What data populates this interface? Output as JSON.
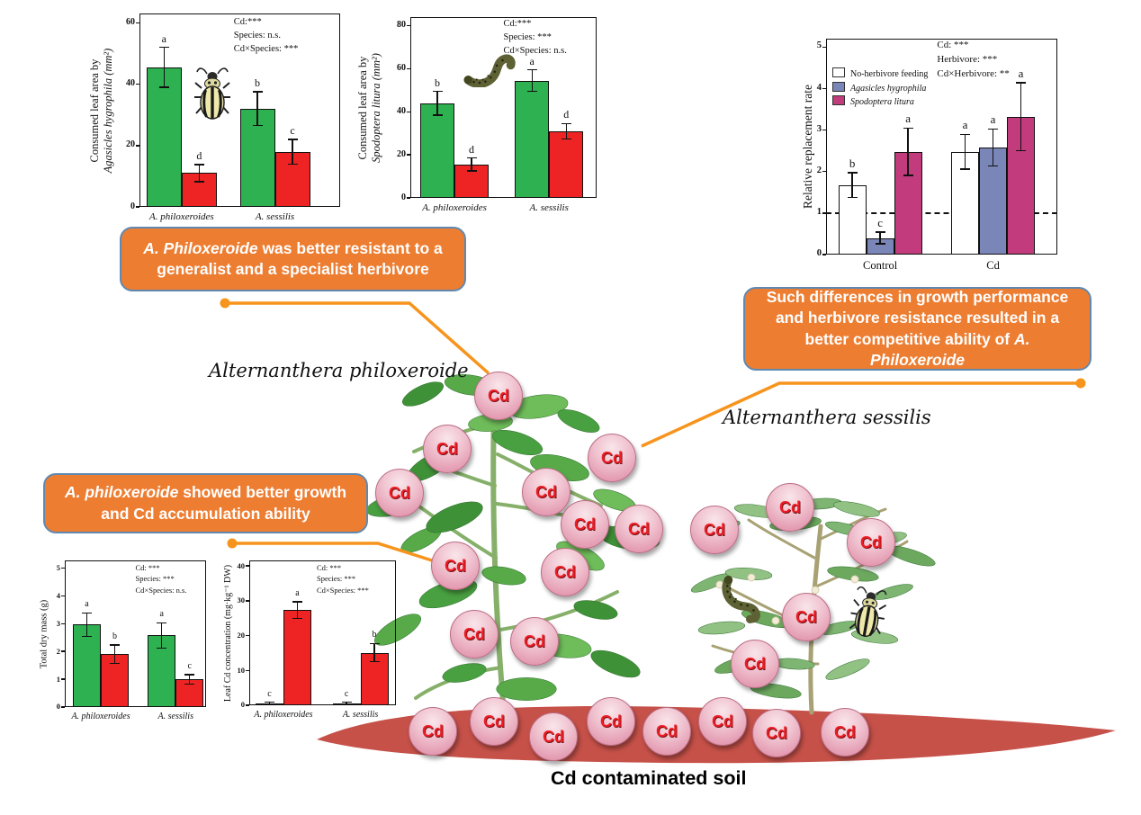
{
  "labels": {
    "left_plant": "Alternanthera philoxeroide",
    "right_plant": "Alternanthera sessilis",
    "soil": "Cd contaminated soil",
    "cd_ball": "Cd",
    "cd_ball_count": 24
  },
  "colors": {
    "callout_bg": "#ED7D31",
    "callout_border": "#6189b0",
    "connector_orange": "#f7941d",
    "bar_green": "#2eb150",
    "bar_red": "#ee2424",
    "bar_white": "#ffffff",
    "bar_blue": "#7b86b8",
    "bar_magenta": "#c23b7d",
    "soil_red": "#c65149",
    "ball_pink": "#f0c3d0"
  },
  "callouts": [
    {
      "pre": "",
      "italic": "A. Philoxeroide",
      "post": " was better resistant to a generalist and a specialist herbivore"
    },
    {
      "pre": "Such differences in growth performance and herbivore resistance  resulted in a better competitive ability of ",
      "italic": "A. Philoxeroide",
      "post": ""
    },
    {
      "pre": "",
      "italic": "A. philoxeroide",
      "post": " showed better growth and Cd accumulation ability"
    }
  ],
  "chart_data": [
    {
      "type": "bar",
      "ylabel_lines": [
        {
          "text": "Consumed leaf area by",
          "italic": false
        },
        {
          "text": "Agasicles hygrophila (mm²)",
          "italic": true
        }
      ],
      "categories": [
        {
          "text": "A. philoxeroides",
          "italic": true
        },
        {
          "text": "A. sessilis",
          "italic": true
        }
      ],
      "ylim": [
        0,
        63
      ],
      "yticks": [
        0,
        20,
        40,
        60
      ],
      "series": [
        {
          "color": "#2eb150",
          "values": [
            45.5,
            32.0
          ],
          "errors": [
            6.5,
            5.5
          ],
          "letters": [
            "a",
            "b"
          ]
        },
        {
          "color": "#ee2424",
          "values": [
            11.0,
            18.0
          ],
          "errors": [
            2.8,
            4.0
          ],
          "letters": [
            "d",
            "c"
          ]
        }
      ],
      "stats": [
        "Cd:***",
        "Species: n.s.",
        "Cd×Species: ***"
      ],
      "icon": "beetle"
    },
    {
      "type": "bar",
      "ylabel_lines": [
        {
          "text": "Consumed leaf area by",
          "italic": false
        },
        {
          "text": "Spodoptera litura (mm²)",
          "italic": true
        }
      ],
      "categories": [
        {
          "text": "A. philoxeroides",
          "italic": true
        },
        {
          "text": "A. sessilis",
          "italic": true
        }
      ],
      "ylim": [
        0,
        84
      ],
      "yticks": [
        0,
        20,
        40,
        60,
        80
      ],
      "series": [
        {
          "color": "#2eb150",
          "values": [
            44.0,
            54.5
          ],
          "errors": [
            5.5,
            5.0
          ],
          "letters": [
            "b",
            "a"
          ]
        },
        {
          "color": "#ee2424",
          "values": [
            15.5,
            31.0
          ],
          "errors": [
            3.0,
            3.5
          ],
          "letters": [
            "d",
            "d"
          ]
        }
      ],
      "stats": [
        "Cd:***",
        "Species: ***",
        "Cd×Species: n.s."
      ],
      "icon": "cat"
    },
    {
      "type": "bar",
      "ylabel_lines": [
        {
          "text": "Relative replacement rate",
          "italic": false
        }
      ],
      "categories": [
        {
          "text": "Control",
          "italic": false
        },
        {
          "text": "Cd",
          "italic": false
        }
      ],
      "ylim": [
        0,
        5.2
      ],
      "yticks": [
        0,
        1,
        2,
        3,
        4,
        5
      ],
      "series": [
        {
          "name": "No-herbivore feeding",
          "name_italic": false,
          "color": "#ffffff",
          "values": [
            1.67,
            2.48
          ],
          "errors": [
            0.3,
            0.42
          ],
          "letters": [
            "b",
            "a"
          ]
        },
        {
          "name": "Agasicles hygrophila",
          "name_italic": true,
          "color": "#7b86b8",
          "values": [
            0.4,
            2.58
          ],
          "errors": [
            0.14,
            0.45
          ],
          "letters": [
            "c",
            "a"
          ]
        },
        {
          "name": "Spodoptera litura",
          "name_italic": true,
          "color": "#c23b7d",
          "values": [
            2.48,
            3.32
          ],
          "errors": [
            0.57,
            0.82
          ],
          "letters": [
            "a",
            "a"
          ]
        }
      ],
      "stats": [
        "Cd: ***",
        "Herbivore: ***",
        "Cd×Herbivore: **"
      ],
      "ref_line": 1,
      "legend": true
    },
    {
      "type": "bar",
      "ylabel_lines": [
        {
          "text": "Total dry mass (g)",
          "italic": false
        }
      ],
      "categories": [
        {
          "text": "A. philoxeroides",
          "italic": true
        },
        {
          "text": "A. sessilis",
          "italic": true
        }
      ],
      "ylim": [
        0,
        5.27
      ],
      "yticks": [
        0,
        1,
        2,
        3,
        4,
        5
      ],
      "series": [
        {
          "color": "#2eb150",
          "values": [
            2.97,
            2.58
          ],
          "errors": [
            0.42,
            0.45
          ],
          "letters": [
            "a",
            "a"
          ]
        },
        {
          "color": "#ee2424",
          "values": [
            1.9,
            1.0
          ],
          "errors": [
            0.33,
            0.17
          ],
          "letters": [
            "b",
            "c"
          ]
        }
      ],
      "stats": [
        "Cd: ***",
        "Species: ***",
        "Cd×Species: n.s."
      ]
    },
    {
      "type": "bar",
      "ylabel_lines": [
        {
          "text": "Leaf Cd concentration (mg·kg⁻¹ DW)",
          "italic": false
        }
      ],
      "categories": [
        {
          "text": "A. philoxeroides",
          "italic": true
        },
        {
          "text": "A. sessilis",
          "italic": true
        }
      ],
      "ylim": [
        0,
        41.6
      ],
      "yticks": [
        0,
        10,
        20,
        30,
        40
      ],
      "series": [
        {
          "color": "#2eb150",
          "values": [
            0.6,
            0.6
          ],
          "errors": [
            0.25,
            0.25
          ],
          "letters": [
            "c",
            "c"
          ]
        },
        {
          "color": "#ee2424",
          "values": [
            27.3,
            15.1
          ],
          "errors": [
            2.4,
            2.6
          ],
          "letters": [
            "a",
            "b"
          ]
        }
      ],
      "stats": [
        "Cd: ***",
        "Species: ***",
        "Cd×Species: ***"
      ]
    }
  ]
}
